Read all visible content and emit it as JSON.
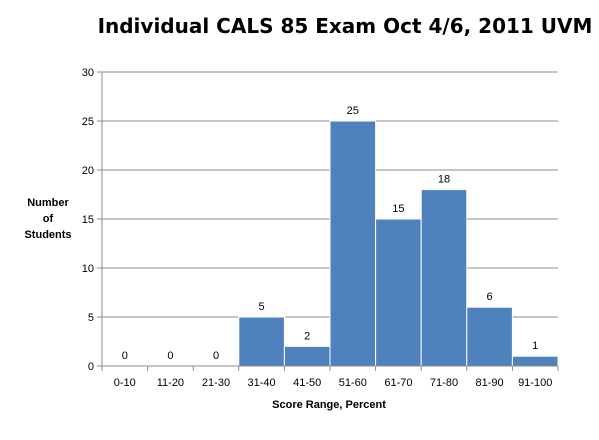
{
  "chart_data": {
    "type": "bar",
    "title": "Individual CALS 85 Exam Oct 4/6, 2011 UVM",
    "ylabel_lines": [
      "Number",
      "of",
      "Students"
    ],
    "xlabel": "Score Range, Percent",
    "categories": [
      "0-10",
      "11-20",
      "21-30",
      "31-40",
      "41-50",
      "51-60",
      "61-70",
      "71-80",
      "81-90",
      "91-100"
    ],
    "values": [
      0,
      0,
      0,
      5,
      2,
      25,
      15,
      18,
      6,
      1
    ],
    "ylim": [
      0,
      30
    ],
    "yticks": [
      0,
      5,
      10,
      15,
      20,
      25,
      30
    ],
    "grid": true,
    "legend": "none",
    "bar_color": "#4f81bd",
    "bar_edge_color": "#ffffff",
    "grid_color": "#8c8c8c"
  }
}
